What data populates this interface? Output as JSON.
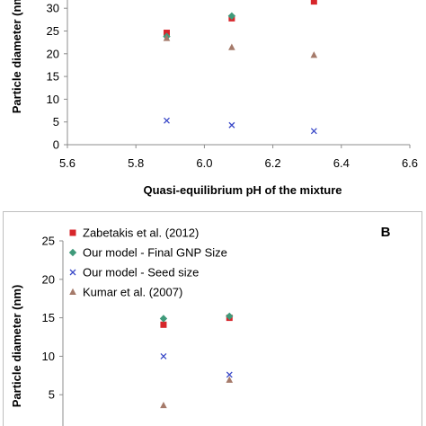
{
  "chart_data": [
    {
      "type": "scatter",
      "panel_label": "",
      "xlabel": "Quasi-equilibrium pH of the mixture",
      "ylabel": "Particle diameter (nm)",
      "xlim": [
        5.6,
        6.6
      ],
      "ylim": [
        0,
        30
      ],
      "x_ticks": [
        "5.6",
        "5.8",
        "6.0",
        "6.2",
        "6.4",
        "6.6"
      ],
      "y_ticks": [
        "0",
        "5",
        "10",
        "15",
        "20",
        "25",
        "30"
      ],
      "grid": false,
      "legend": "",
      "series": [
        {
          "marker": "square",
          "color": "#d7262b",
          "points": [
            {
              "x": 5.89,
              "y": 24.6
            },
            {
              "x": 6.08,
              "y": 27.8
            },
            {
              "x": 6.32,
              "y": 31.5
            }
          ]
        },
        {
          "marker": "diamond",
          "color": "#3f9a7a",
          "points": [
            {
              "x": 5.89,
              "y": 23.8
            },
            {
              "x": 6.08,
              "y": 28.3
            }
          ]
        },
        {
          "marker": "x",
          "color": "#3a49c8",
          "points": [
            {
              "x": 5.89,
              "y": 5.3
            },
            {
              "x": 6.08,
              "y": 4.3
            },
            {
              "x": 6.32,
              "y": 3.0
            }
          ]
        },
        {
          "marker": "triangle",
          "color": "#a57a6a",
          "points": [
            {
              "x": 5.89,
              "y": 23.4
            },
            {
              "x": 6.08,
              "y": 21.4
            },
            {
              "x": 6.32,
              "y": 19.7
            }
          ]
        }
      ]
    },
    {
      "type": "scatter",
      "panel_label": "B",
      "xlabel": "",
      "ylabel": "Particle diameter (nm)",
      "xlim": [
        5.6,
        6.6
      ],
      "ylim": [
        0,
        25
      ],
      "y_ticks": [
        "25",
        "20",
        "15",
        "10",
        "5"
      ],
      "grid": false,
      "legend": "top-left",
      "series": [
        {
          "name": "Zabetakis et al. (2012)",
          "marker": "square",
          "color": "#d7262b",
          "points": [
            {
              "x": 5.89,
              "y": 14.1
            },
            {
              "x": 6.08,
              "y": 15.0
            }
          ]
        },
        {
          "name": "Our model - Final GNP Size",
          "marker": "diamond",
          "color": "#3f9a7a",
          "points": [
            {
              "x": 5.89,
              "y": 14.9
            },
            {
              "x": 6.08,
              "y": 15.2
            }
          ]
        },
        {
          "name": "Our model - Seed size",
          "marker": "x",
          "color": "#3a49c8",
          "points": [
            {
              "x": 5.89,
              "y": 10.0
            },
            {
              "x": 6.08,
              "y": 7.6
            }
          ]
        },
        {
          "name": "Kumar et al. (2007)",
          "marker": "triangle",
          "color": "#a57a6a",
          "points": [
            {
              "x": 5.89,
              "y": 3.6
            },
            {
              "x": 6.08,
              "y": 6.9
            }
          ]
        }
      ]
    }
  ]
}
